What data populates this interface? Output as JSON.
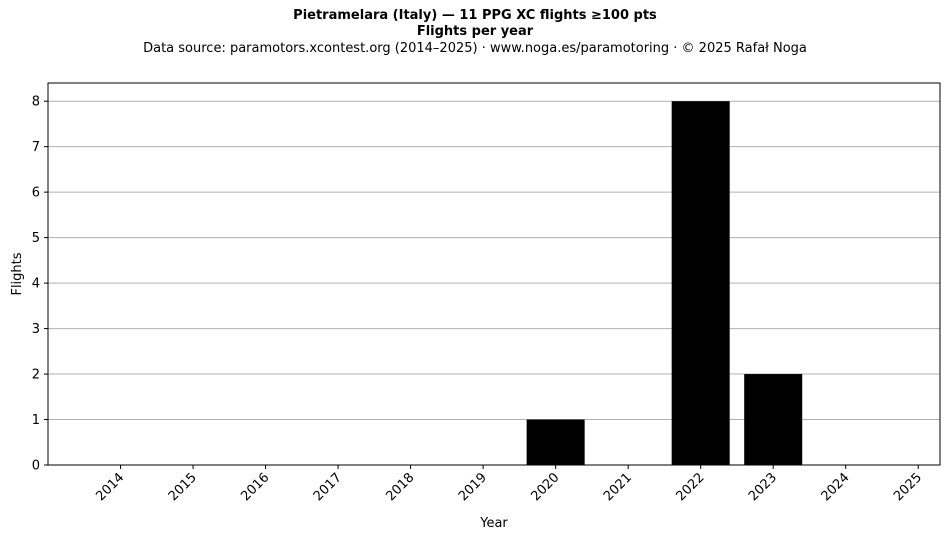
{
  "chart_data": {
    "type": "bar",
    "title": "Pietramelara (Italy)  —  11 PPG XC flights ≥100 pts",
    "title_line2": "Flights per year",
    "subtitle": "Data source: paramotors.xcontest.org (2014–2025)  ·  www.noga.es/paramotoring  ·  © 2025 Rafał Noga",
    "xlabel": "Year",
    "ylabel": "Flights",
    "categories": [
      "2014",
      "2015",
      "2016",
      "2017",
      "2018",
      "2019",
      "2020",
      "2021",
      "2022",
      "2023",
      "2024",
      "2025"
    ],
    "values": [
      0,
      0,
      0,
      0,
      0,
      0,
      1,
      0,
      8,
      2,
      0,
      0
    ],
    "ylim": [
      0,
      8.4
    ],
    "yticks": [
      0,
      1,
      2,
      3,
      4,
      5,
      6,
      7,
      8
    ],
    "grid": "horizontal",
    "bar_color": "#000000",
    "grid_color": "#b0b0b0"
  }
}
